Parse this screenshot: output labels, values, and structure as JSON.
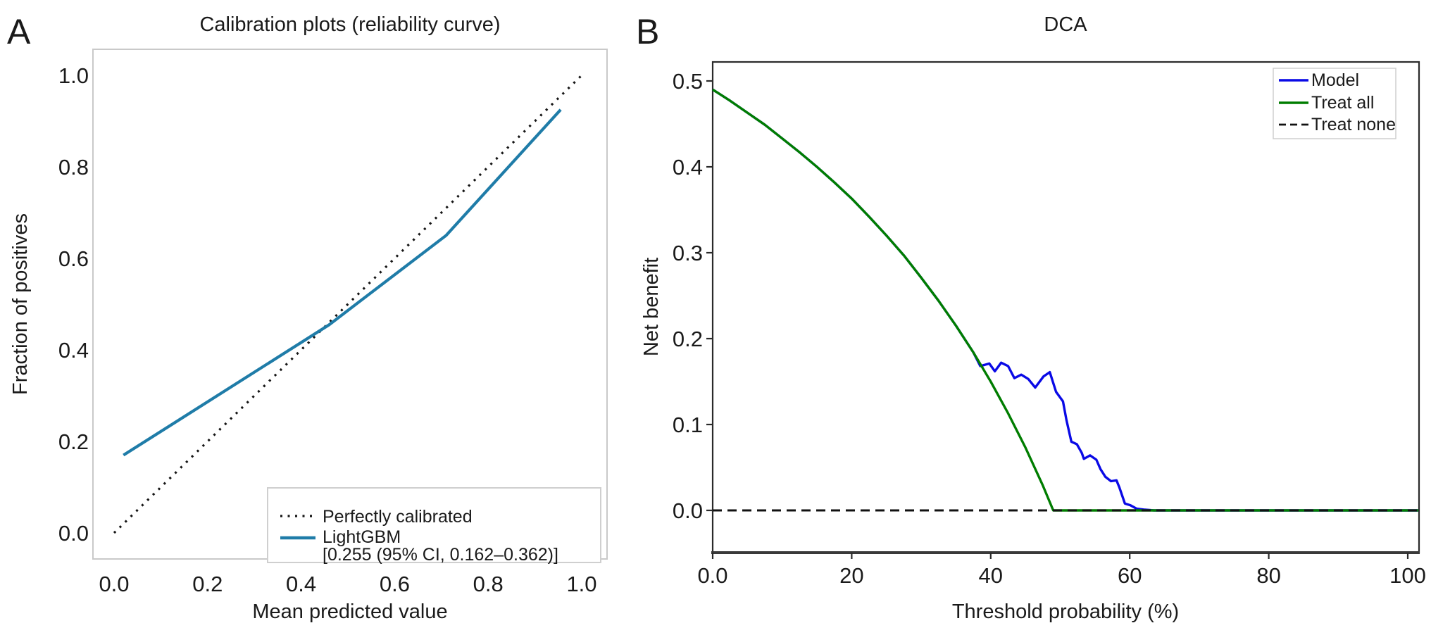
{
  "figure": {
    "background": "#ffffff",
    "panels": [
      {
        "corner_label": "A"
      },
      {
        "corner_label": "B"
      }
    ]
  },
  "chart_data": [
    {
      "panel": "A",
      "type": "line",
      "title": "Calibration plots (reliability curve)",
      "xlabel": "Mean predicted value",
      "ylabel": "Fraction of positives",
      "xlim": [
        -0.05,
        1.05
      ],
      "ylim": [
        -0.05,
        1.05
      ],
      "grid": false,
      "xticks": {
        "values": [
          0.0,
          0.2,
          0.4,
          0.6,
          0.8,
          1.0
        ],
        "labels": [
          "0.0",
          "0.2",
          "0.4",
          "0.6",
          "0.8",
          "1.0"
        ]
      },
      "yticks": {
        "values": [
          0.0,
          0.2,
          0.4,
          0.6,
          0.8,
          1.0
        ],
        "labels": [
          "0.0",
          "0.2",
          "0.4",
          "0.6",
          "0.8",
          "1.0"
        ]
      },
      "legend": {
        "position": "lower right"
      },
      "series": [
        {
          "name": "Perfectly calibrated",
          "style": "dotted",
          "color": "#151515",
          "x": [
            0,
            1
          ],
          "y": [
            0,
            1
          ]
        },
        {
          "name": "LightGBM",
          "ci_label": "[0.255 (95% CI, 0.162–0.362)]",
          "style": "solid",
          "color": "#1f7ca8",
          "x": [
            0.02,
            0.46,
            0.71,
            0.955
          ],
          "y": [
            0.17,
            0.455,
            0.65,
            0.925
          ]
        }
      ]
    },
    {
      "panel": "B",
      "type": "line",
      "title": "DCA",
      "xlabel": "Threshold probability (%)",
      "ylabel": "Net benefit",
      "xlim": [
        0,
        101.5
      ],
      "ylim": [
        -0.05,
        0.522
      ],
      "grid": false,
      "xticks": {
        "values": [
          0,
          20,
          40,
          60,
          80,
          100
        ],
        "labels": [
          "0.0",
          "20",
          "40",
          "60",
          "80",
          "100"
        ]
      },
      "yticks": {
        "values": [
          0.0,
          0.1,
          0.2,
          0.3,
          0.4,
          0.5
        ],
        "labels": [
          "0.0",
          "0.1",
          "0.2",
          "0.3",
          "0.4",
          "0.5"
        ]
      },
      "legend": {
        "position": "upper right"
      },
      "series": [
        {
          "name": "Model",
          "style": "solid",
          "color": "#0a0ae6",
          "x": [
            0,
            2.5,
            5,
            7.5,
            10,
            12.5,
            15,
            17.5,
            20,
            22.5,
            25,
            27.5,
            30,
            32.5,
            35,
            37.5,
            38.5,
            39.8,
            40.6,
            41.5,
            42.5,
            43.4,
            44.4,
            45.4,
            46.4,
            47.6,
            48.5,
            49.4,
            50.4,
            50.9,
            51.6,
            52.4,
            53.1,
            53.4,
            54.3,
            55.2,
            55.8,
            56.5,
            57.3,
            58.1,
            58.5,
            59.3,
            60.1,
            61.0,
            62.0,
            63.5,
            101.5
          ],
          "y": [
            0.49,
            0.477,
            0.463,
            0.449,
            0.433,
            0.417,
            0.4,
            0.382,
            0.363,
            0.342,
            0.32,
            0.297,
            0.271,
            0.244,
            0.215,
            0.184,
            0.168,
            0.171,
            0.162,
            0.172,
            0.168,
            0.154,
            0.158,
            0.153,
            0.143,
            0.156,
            0.161,
            0.138,
            0.127,
            0.105,
            0.08,
            0.077,
            0.067,
            0.06,
            0.064,
            0.059,
            0.048,
            0.039,
            0.034,
            0.035,
            0.027,
            0.008,
            0.006,
            0.002,
            0.001,
            0.0,
            0.0
          ]
        },
        {
          "name": "Treat all",
          "style": "solid",
          "color": "#007d00",
          "x": [
            0,
            2.5,
            5,
            7.5,
            10,
            12.5,
            15,
            17.5,
            20,
            22.5,
            25,
            27.5,
            30,
            32.5,
            35,
            37.5,
            40,
            42.5,
            45,
            47.5,
            49,
            101.5
          ],
          "y": [
            0.49,
            0.477,
            0.463,
            0.449,
            0.433,
            0.417,
            0.4,
            0.382,
            0.363,
            0.342,
            0.32,
            0.297,
            0.271,
            0.244,
            0.215,
            0.184,
            0.15,
            0.113,
            0.073,
            0.029,
            0.0,
            0.0
          ]
        },
        {
          "name": "Treat none",
          "style": "dashed",
          "color": "#111111",
          "x": [
            0,
            101.5
          ],
          "y": [
            0,
            0
          ]
        }
      ]
    }
  ]
}
